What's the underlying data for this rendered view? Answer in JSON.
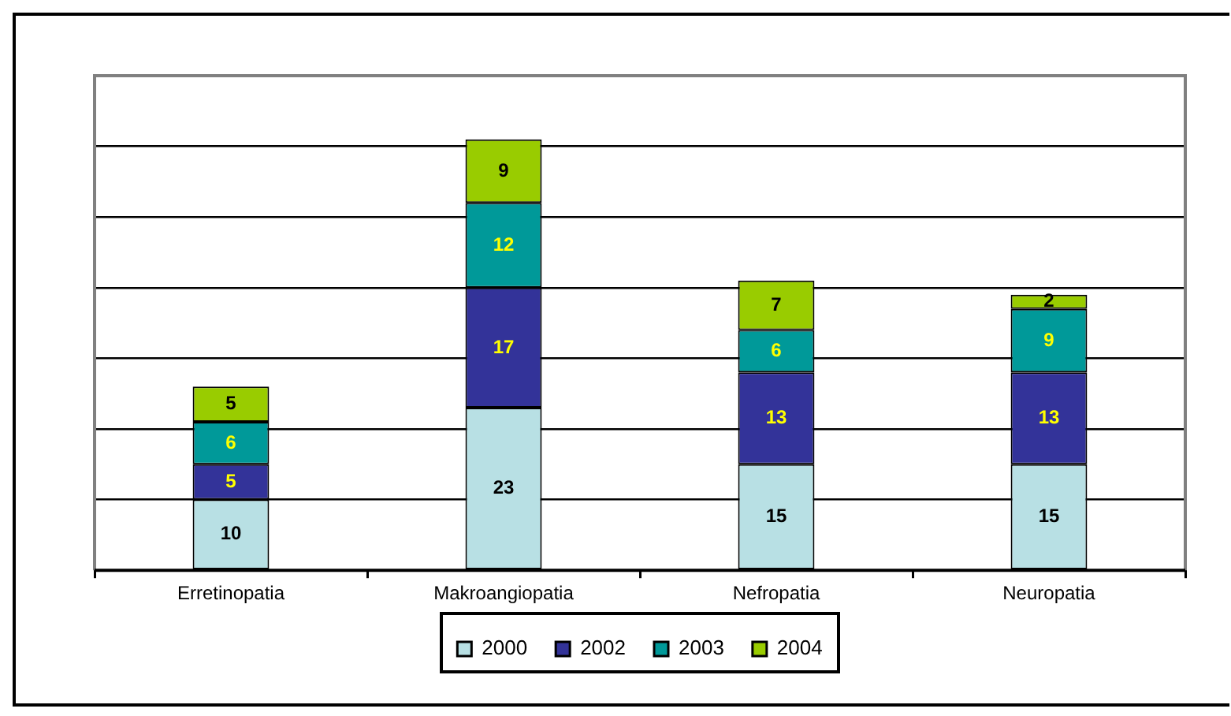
{
  "chart_data": {
    "type": "bar",
    "stacked": true,
    "categories": [
      "Erretinopatia",
      "Makroangiopatia",
      "Nefropatia",
      "Neuropatia"
    ],
    "series": [
      {
        "name": "2000",
        "color": "#b8e0e4",
        "values": [
          10,
          23,
          15,
          15
        ]
      },
      {
        "name": "2002",
        "color": "#333399",
        "values": [
          5,
          17,
          13,
          13
        ]
      },
      {
        "name": "2003",
        "color": "#009999",
        "values": [
          6,
          12,
          6,
          9
        ]
      },
      {
        "name": "2004",
        "color": "#99cc00",
        "values": [
          5,
          9,
          7,
          2
        ]
      }
    ],
    "ylim": [
      0,
      70
    ],
    "yticks": [
      {
        "value": 0,
        "label": null
      },
      {
        "value": 10,
        "label": null
      },
      {
        "value": 20,
        "label": null
      },
      {
        "value": 30,
        "label": null
      },
      {
        "value": 40,
        "label": null
      },
      {
        "value": 50,
        "label": null
      },
      {
        "value": 60,
        "label": null
      }
    ],
    "tick_labels": "x",
    "grid": "y",
    "legend": "bottom",
    "data_labels": true
  }
}
